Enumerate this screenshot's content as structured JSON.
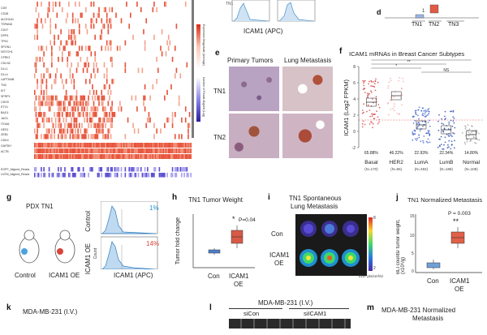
{
  "heatmap": {
    "genes": [
      "CD9",
      "CD38",
      "ALDH1A1",
      "TSPAN8",
      "CD47",
      "DPP4",
      "TFN1",
      "SPON1",
      "NOTCH1",
      "CFRK1",
      "CDLN2",
      "DLL1",
      "DLL4",
      "LAPTM4B",
      "TNC",
      "KIT",
      "SFRP1",
      "CDH3",
      "ETV1",
      "BAG1",
      "JAG1",
      "ITGA6",
      "HES1",
      "ZEB1",
      "CDK4",
      "GAPDH",
      "ACTB"
    ],
    "group_labels": [
      "EGFP_Aligned_Reads",
      "LNTM_Aligned_Reads"
    ],
    "colorbar_top_label": "Expression Magnitude (Average)",
    "colorbar_bottom_label": "Number of Reads Aligned (Log)",
    "colors": {
      "high": "#e8533a",
      "low": "#fbe3da",
      "blue": "#6a5acd",
      "bg": "#ffffff"
    }
  },
  "panel_d_partial": {
    "xlabel": "ICAM1 (APC)"
  },
  "panel_top_right": {
    "labels": [
      "TN1",
      "TN2",
      "TN3"
    ]
  },
  "panel_e": {
    "letter": "e",
    "col_titles": [
      "Primary Tumors",
      "Lung Metastasis"
    ],
    "row_labels": [
      "TN1",
      "TN2"
    ]
  },
  "panel_f": {
    "letter": "f",
    "title": "ICAM1 mRNAs in Breast Cancer Subtypes",
    "ylabel": "ICAM1 (Log2 FPKM)",
    "yticks": [
      "8",
      "6",
      "4",
      "2",
      "0",
      "-2"
    ],
    "sig": [
      "****",
      "**",
      "*",
      "NS"
    ],
    "categories": [
      "Basal",
      "HER2",
      "LumA",
      "LumB",
      "Normal"
    ],
    "n_labels": [
      "(N=170)",
      "(N=56)",
      "(N=484)",
      "(N=188)",
      "(N=108)"
    ],
    "percents": [
      "65.88%",
      "46.22%",
      "22.93%",
      "22.34%",
      "14.80%"
    ],
    "colors": [
      "#d23c3c",
      "#f4a6a6",
      "#3a5fcd",
      "#1f3fa8",
      "#999999"
    ]
  },
  "panel_g": {
    "letter": "g",
    "title": "PDX TN1",
    "mouse_labels": [
      "Control",
      "ICAM1 OE"
    ],
    "flow_row_labels": [
      "Control",
      "ICAM1 OE"
    ],
    "flow_percents": [
      "1%",
      "14%"
    ],
    "ylabel": "Count",
    "xlabel": "ICAM1 (APC)"
  },
  "panel_h": {
    "letter": "h",
    "title": "TN1 Tumor Weight",
    "ylabel": "Tumor fold change",
    "pval": "P=0.04",
    "star": "*",
    "categories": [
      "Con",
      "ICAM1\nOE"
    ],
    "cat1": "Con",
    "cat2_line1": "ICAM1",
    "cat2_line2": "OE"
  },
  "panel_i": {
    "letter": "i",
    "title_line1": "TN1 Spontaneous",
    "title_line2": "Lung Metastasis",
    "row1": "Con",
    "row2_line1": "ICAM1",
    "row2_line2": "OE",
    "scale_top": "8",
    "scale_bottom": "2",
    "unit": "x10⁶ p/s/cm²/sr"
  },
  "panel_j": {
    "letter": "j",
    "title": "TN1 Normalized Metastasis",
    "ylabel": "BLI counts/ tumor weight, (x10⁶/g)",
    "pval": "P = 0.003",
    "star": "**",
    "yticks": [
      "15",
      "10",
      "5",
      "0"
    ],
    "cat1": "Con",
    "cat2_line1": "ICAM1",
    "cat2_line2": "OE"
  },
  "panel_k": {
    "letter": "k",
    "text": "MDA-MB-231 (I.V.)"
  },
  "panel_l": {
    "letter": "l",
    "title": "MDA-MB-231 (I.V.)",
    "col1": "siCon",
    "col2": "siICAM1"
  },
  "panel_m": {
    "letter": "m",
    "title_line1": "MDA-MB-231 Normalized",
    "title_line2": "Metastasis"
  }
}
